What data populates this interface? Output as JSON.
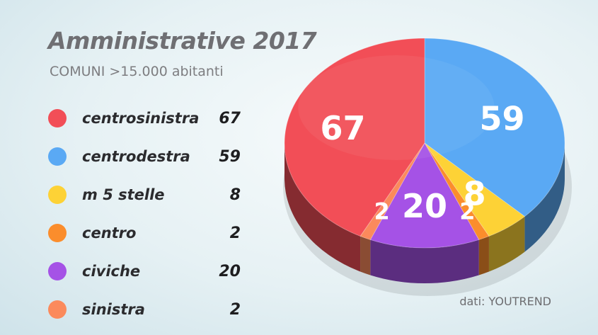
{
  "header": {
    "title": "Amministrative 2017",
    "subtitle": "COMUNI >15.000 abitanti"
  },
  "source": "dati: YOUTREND",
  "chart_data": {
    "type": "pie",
    "title": "Amministrative 2017",
    "subtitle": "COMUNI >15.000 abitanti",
    "categories": [
      "centrosinistra",
      "centrodestra",
      "m 5 stelle",
      "centro",
      "civiche",
      "sinistra"
    ],
    "values": [
      67,
      59,
      8,
      2,
      20,
      2
    ],
    "colors": [
      "#f24e57",
      "#5aa9f4",
      "#fdd236",
      "#fb8d2c",
      "#a552e6",
      "#fb8a5c"
    ],
    "legend": "left",
    "style": "3d"
  }
}
